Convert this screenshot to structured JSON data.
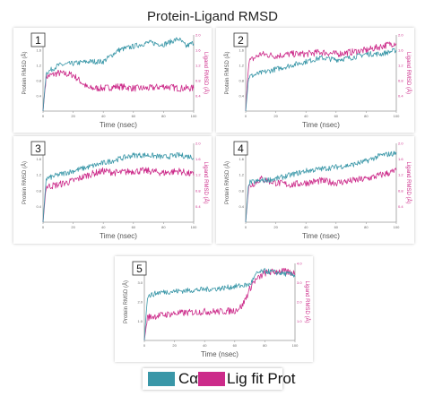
{
  "title": "Protein-Ligand RMSD",
  "legend": {
    "protein_label": "Cα",
    "ligand_label": "Lig fit Prot",
    "protein_color": "#3a97a8",
    "ligand_color": "#cc2b8a"
  },
  "chart_data": [
    {
      "type": "line",
      "panel_label": "1",
      "xlabel": "Time (nsec)",
      "ylabel_left": "Protein RMSD (Å)",
      "ylabel_right": "Ligand RMSD (Å)",
      "x_ticks": [
        "0",
        "20",
        "40",
        "60",
        "80",
        "100"
      ],
      "xlim": [
        0,
        100
      ],
      "ylim": [
        0,
        2.0
      ],
      "y_ticks": [
        "0.4",
        "0.8",
        "1.2",
        "1.6",
        "2.0"
      ],
      "series": [
        {
          "name": "Cα",
          "x": [
            0,
            2,
            10,
            20,
            30,
            40,
            50,
            60,
            70,
            80,
            90,
            95,
            100
          ],
          "values": [
            0.0,
            1.0,
            1.2,
            1.25,
            1.3,
            1.3,
            1.6,
            1.7,
            1.8,
            1.75,
            1.9,
            1.7,
            1.8
          ]
        },
        {
          "name": "Lig fit Prot",
          "x": [
            0,
            2,
            10,
            20,
            30,
            40,
            50,
            60,
            70,
            80,
            90,
            100
          ],
          "values": [
            0.0,
            0.9,
            1.0,
            0.95,
            0.6,
            0.6,
            0.65,
            0.6,
            0.6,
            0.65,
            0.6,
            0.6
          ]
        }
      ]
    },
    {
      "type": "line",
      "panel_label": "2",
      "xlabel": "Time (nsec)",
      "ylabel_left": "Protein RMSD (Å)",
      "ylabel_right": "Ligand RMSD (Å)",
      "x_ticks": [
        "0",
        "20",
        "40",
        "60",
        "80",
        "100"
      ],
      "xlim": [
        0,
        100
      ],
      "ylim": [
        0,
        2.0
      ],
      "y_ticks": [
        "0.4",
        "0.8",
        "1.2",
        "1.6",
        "2.0"
      ],
      "series": [
        {
          "name": "Cα",
          "x": [
            0,
            2,
            10,
            20,
            30,
            40,
            50,
            60,
            70,
            80,
            90,
            100
          ],
          "values": [
            0.0,
            0.9,
            1.0,
            1.1,
            1.2,
            1.3,
            1.4,
            1.35,
            1.4,
            1.5,
            1.5,
            1.6
          ]
        },
        {
          "name": "Lig fit Prot",
          "x": [
            0,
            2,
            10,
            20,
            30,
            40,
            50,
            60,
            70,
            80,
            90,
            100
          ],
          "values": [
            0.0,
            1.3,
            1.5,
            1.45,
            1.5,
            1.5,
            1.55,
            1.5,
            1.55,
            1.6,
            1.7,
            1.8
          ]
        }
      ]
    },
    {
      "type": "line",
      "panel_label": "3",
      "xlabel": "Time (nsec)",
      "ylabel_left": "Protein RMSD (Å)",
      "ylabel_right": "Ligand RMSD (Å)",
      "x_ticks": [
        "0",
        "20",
        "40",
        "60",
        "80",
        "100"
      ],
      "xlim": [
        0,
        100
      ],
      "ylim": [
        0,
        2.0
      ],
      "y_ticks": [
        "0.4",
        "0.8",
        "1.2",
        "1.6",
        "2.0"
      ],
      "series": [
        {
          "name": "Cα",
          "x": [
            0,
            2,
            10,
            20,
            30,
            40,
            50,
            60,
            70,
            80,
            90,
            100
          ],
          "values": [
            0.0,
            1.1,
            1.2,
            1.3,
            1.4,
            1.5,
            1.6,
            1.7,
            1.7,
            1.65,
            1.7,
            1.65
          ]
        },
        {
          "name": "Lig fit Prot",
          "x": [
            0,
            2,
            10,
            20,
            30,
            40,
            50,
            60,
            70,
            80,
            90,
            100
          ],
          "values": [
            0.0,
            0.9,
            0.95,
            1.05,
            1.2,
            1.3,
            1.25,
            1.3,
            1.3,
            1.25,
            1.3,
            1.2
          ]
        }
      ]
    },
    {
      "type": "line",
      "panel_label": "4",
      "xlabel": "Time (nsec)",
      "ylabel_left": "Protein RMSD (Å)",
      "ylabel_right": "Ligand RMSD (Å)",
      "x_ticks": [
        "0",
        "20",
        "40",
        "60",
        "80",
        "100"
      ],
      "xlim": [
        0,
        100
      ],
      "ylim": [
        0,
        2.0
      ],
      "y_ticks": [
        "0.4",
        "0.8",
        "1.2",
        "1.6",
        "2.0"
      ],
      "series": [
        {
          "name": "Cα",
          "x": [
            0,
            2,
            10,
            20,
            30,
            40,
            50,
            60,
            70,
            80,
            90,
            100
          ],
          "values": [
            0.0,
            1.0,
            1.05,
            1.1,
            1.2,
            1.3,
            1.35,
            1.4,
            1.45,
            1.55,
            1.7,
            1.75
          ]
        },
        {
          "name": "Lig fit Prot",
          "x": [
            0,
            2,
            10,
            20,
            30,
            40,
            50,
            60,
            70,
            80,
            90,
            100
          ],
          "values": [
            0.0,
            0.9,
            1.1,
            1.0,
            0.95,
            1.0,
            1.05,
            1.0,
            1.05,
            1.1,
            1.2,
            1.3
          ]
        }
      ]
    },
    {
      "type": "line",
      "panel_label": "5",
      "xlabel": "Time (nsec)",
      "ylabel_left": "Protein RMSD (Å)",
      "ylabel_right": "Ligand RMSD (Å)",
      "x_ticks": [
        "0",
        "20",
        "40",
        "60",
        "80",
        "100"
      ],
      "xlim": [
        0,
        100
      ],
      "ylim": [
        0,
        4.0
      ],
      "y_ticks": [
        "1.0",
        "2.0",
        "3.0",
        "4.0"
      ],
      "series": [
        {
          "name": "Cα",
          "x": [
            0,
            2,
            10,
            20,
            30,
            40,
            50,
            60,
            70,
            75,
            80,
            90,
            100
          ],
          "values": [
            0.0,
            2.3,
            2.5,
            2.55,
            2.6,
            2.65,
            2.7,
            2.8,
            2.9,
            3.5,
            3.6,
            3.5,
            3.4
          ]
        },
        {
          "name": "Lig fit Prot",
          "x": [
            0,
            2,
            10,
            20,
            30,
            40,
            50,
            60,
            65,
            72,
            80,
            90,
            100
          ],
          "values": [
            0.0,
            1.2,
            1.3,
            1.4,
            1.45,
            1.5,
            1.5,
            1.55,
            1.8,
            3.0,
            3.5,
            3.6,
            3.5
          ]
        }
      ]
    }
  ]
}
